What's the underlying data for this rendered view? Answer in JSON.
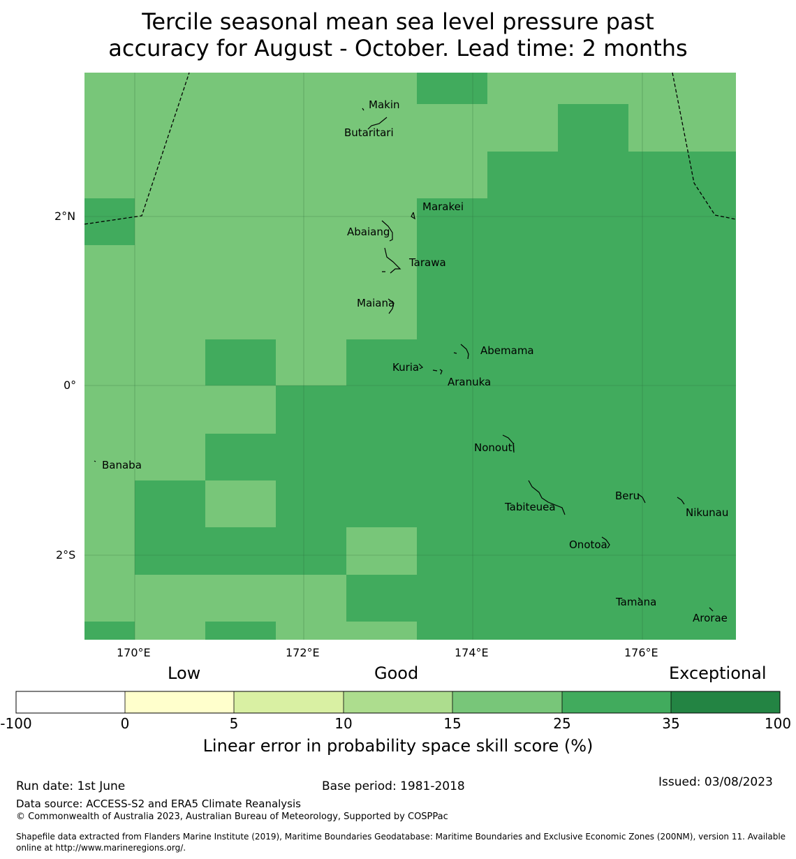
{
  "title": {
    "line1": "Tercile seasonal mean sea level pressure past",
    "line2": "accuracy for August - October. Lead time: 2 months"
  },
  "map": {
    "lon_range": [
      169.4,
      177.1
    ],
    "lat_range": [
      -2.85,
      3.82
    ],
    "lon_ticks": [
      "170°E",
      "172°E",
      "174°E",
      "176°E"
    ],
    "lat_ticks": [
      "2°N",
      "0°",
      "2°S"
    ],
    "place_labels": [
      "Makin",
      "Butaritari",
      "Marakei",
      "Abaiang",
      "Tarawa",
      "Maiana",
      "Abemama",
      "Kuria",
      "Aranuka",
      "Nonouti",
      "Banaba",
      "Tabiteuea",
      "Beru",
      "Nikunau",
      "Onotoa",
      "Tamana",
      "Arorae"
    ],
    "colors": {
      "skill_15_25": "#78c679",
      "skill_25_35": "#41ab5d"
    }
  },
  "colorbar": {
    "title": "Linear error in probability space skill score (%)",
    "category_labels": [
      "Low",
      "Good",
      "Exceptional"
    ],
    "tick_labels": [
      "-100",
      "0",
      "5",
      "10",
      "15",
      "25",
      "35",
      "100"
    ],
    "colors": [
      "#ffffff",
      "#ffffcc",
      "#d9f0a3",
      "#addd8e",
      "#78c679",
      "#41ab5d",
      "#238443"
    ]
  },
  "footer": {
    "run_date": "Run date: 1st June",
    "base_period": "Base period: 1981-2018",
    "issued": "Issued: 03/08/2023",
    "data_source": "Data source: ACCESS-S2 and ERA5 Climate Reanalysis",
    "copyright": "© Commonwealth of Australia 2023, Australian Bureau of Meteorology, Supported by COSPPac",
    "shapefile_line1": "Shapefile data extracted from Flanders Marine Institute (2019), Maritime Boundaries Geodatabase: Maritime Boundaries and Exclusive Economic Zones (200NM), version 11. Available",
    "shapefile_line2": "online at http://www.marineregions.org/."
  }
}
